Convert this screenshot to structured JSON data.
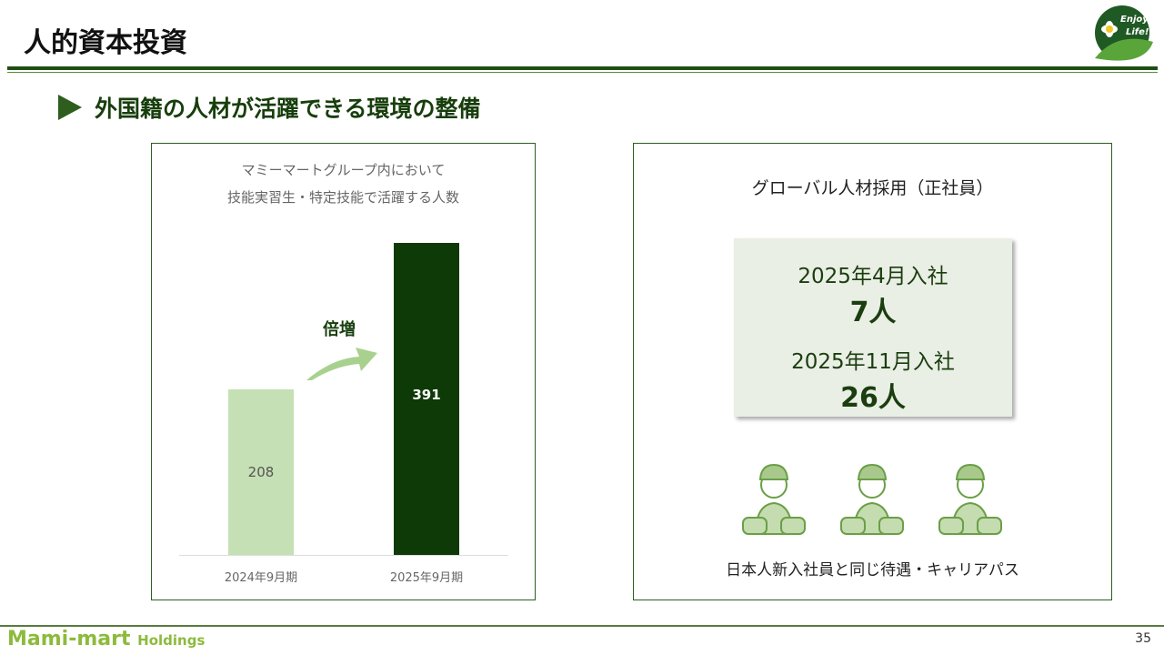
{
  "header": {
    "title": "人的資本投資",
    "logo_text": "Enjoy Life!"
  },
  "subtitle": "外国籍の人材が活躍できる環境の整備",
  "left_panel": {
    "chart_data": {
      "type": "bar",
      "title_lines": [
        "マミーマートグループ内において",
        "技能実習生・特定技能で活躍する人数"
      ],
      "categories": [
        "2024年9月期",
        "2025年9月期"
      ],
      "values": [
        208,
        391
      ],
      "colors": [
        "#c5e0b4",
        "#0d3a06"
      ],
      "annotation": "倍増",
      "ylim": [
        0,
        391
      ]
    }
  },
  "right_panel": {
    "heading": "グローバル人材採用（正社員）",
    "stats": [
      {
        "label": "2025年4月入社",
        "value": "7人"
      },
      {
        "label": "2025年11月入社",
        "value": "26人"
      }
    ],
    "caption": "日本人新入社員と同じ待遇・キャリアパス"
  },
  "footer": {
    "brand": "Mami-mart",
    "brand_suffix": "Holdings",
    "page": "35"
  }
}
